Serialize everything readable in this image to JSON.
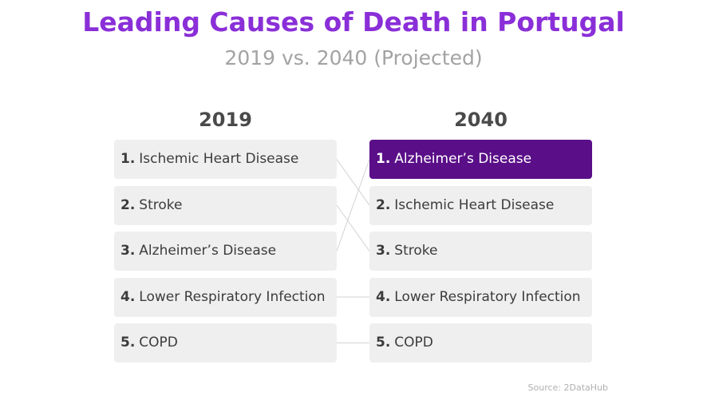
{
  "header": {
    "title": "Leading Causes of Death in Portugal",
    "subtitle": "2019 vs. 2040 (Projected)"
  },
  "columns": [
    {
      "heading": "2019",
      "items": [
        {
          "rank": "1.",
          "label": "Ischemic Heart Disease"
        },
        {
          "rank": "2.",
          "label": "Stroke"
        },
        {
          "rank": "3.",
          "label": "Alzheimer’s Disease"
        },
        {
          "rank": "4.",
          "label": "Lower Respiratory Infection"
        },
        {
          "rank": "5.",
          "label": "COPD"
        }
      ]
    },
    {
      "heading": "2040",
      "items": [
        {
          "rank": "1.",
          "label": "Alzheimer’s Disease",
          "highlighted": true
        },
        {
          "rank": "2.",
          "label": "Ischemic Heart Disease"
        },
        {
          "rank": "3.",
          "label": "Stroke"
        },
        {
          "rank": "4.",
          "label": "Lower Respiratory Infection"
        },
        {
          "rank": "5.",
          "label": "COPD"
        }
      ]
    }
  ],
  "source": "Source: 2DataHub"
}
